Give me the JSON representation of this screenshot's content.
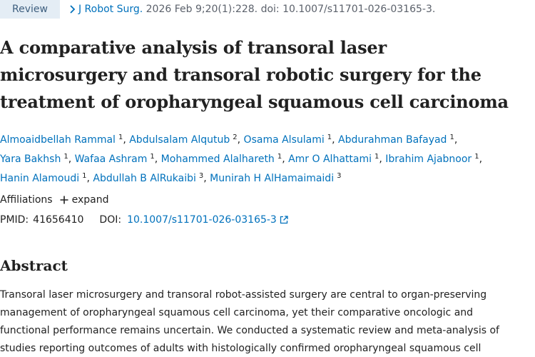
{
  "header": {
    "badge": "Review",
    "journal": "J Robot Surg.",
    "citation_rest": " 2026 Feb 9;20(1):228. doi: 10.1007/s11701-026-03165-3."
  },
  "article": {
    "title_lines": [
      "A comparative analysis of transoral laser",
      "microsurgery and transoral robotic surgery for the",
      "treatment of oropharyngeal squamous cell carcinoma"
    ],
    "authors": [
      {
        "name": "Almoaidbellah Rammal",
        "sup": "1"
      },
      {
        "name": "Abdulsalam Alqutub",
        "sup": "2"
      },
      {
        "name": "Osama Alsulami",
        "sup": "1"
      },
      {
        "name": "Abdurahman Bafayad",
        "sup": "1"
      },
      {
        "name": "Yara Bakhsh",
        "sup": "1"
      },
      {
        "name": "Wafaa Ashram",
        "sup": "1"
      },
      {
        "name": "Mohammed Alalhareth",
        "sup": "1"
      },
      {
        "name": "Amr O Alhattami",
        "sup": "1"
      },
      {
        "name": "Ibrahim Ajabnoor",
        "sup": "1"
      },
      {
        "name": "Hanin Alamoudi",
        "sup": "1"
      },
      {
        "name": "Abdullah B AlRukaibi",
        "sup": "3"
      },
      {
        "name": "Munirah H AlHamaimaidi",
        "sup": "3"
      }
    ],
    "affiliations_label": "Affiliations",
    "expand_label": "expand",
    "pmid_label": "PMID:",
    "pmid": "41656410",
    "doi_label": "DOI:",
    "doi": "10.1007/s11701-026-03165-3"
  },
  "abstract": {
    "heading": "Abstract",
    "lines": [
      "Transoral laser microsurgery and transoral robot-assisted surgery are central to organ-preserving",
      "management of oropharyngeal squamous cell carcinoma, yet their comparative oncologic and",
      "functional performance remains uncertain. We conducted a systematic review and meta-analysis of",
      "studies reporting outcomes of adults with histologically confirmed oropharyngeal squamous cell"
    ]
  },
  "colors": {
    "link": "#0071bc",
    "badge_bg": "#e4edf5",
    "badge_text": "#3e5f7f",
    "text": "#212121"
  },
  "icons": {
    "citation_chevron": "chevron-right-icon",
    "expand": "plus-icon",
    "doi_link": "external-link-icon"
  }
}
